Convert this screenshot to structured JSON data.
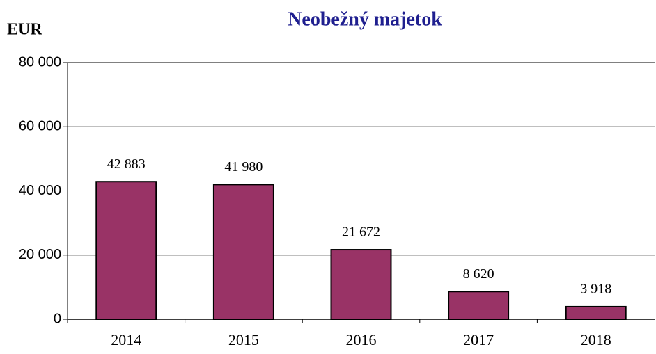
{
  "chart_data": {
    "type": "bar",
    "title": "Neobežný majetok",
    "y_label": "EUR",
    "categories": [
      "2014",
      "2015",
      "2016",
      "2017",
      "2018"
    ],
    "values": [
      42883,
      41980,
      21672,
      8620,
      3918
    ],
    "value_labels": [
      "42 883",
      "41 980",
      "21 672",
      "8 620",
      "3 918"
    ],
    "color": "#993366",
    "ylim": [
      0,
      80000
    ],
    "yticks": [
      0,
      {
        "value": 20000,
        "label": "20 000"
      },
      {
        "value": 40000,
        "label": "40 000"
      },
      {
        "value": 60000,
        "label": "60 000"
      },
      {
        "value": 80000,
        "label": "80 000"
      }
    ],
    "grid": true
  }
}
